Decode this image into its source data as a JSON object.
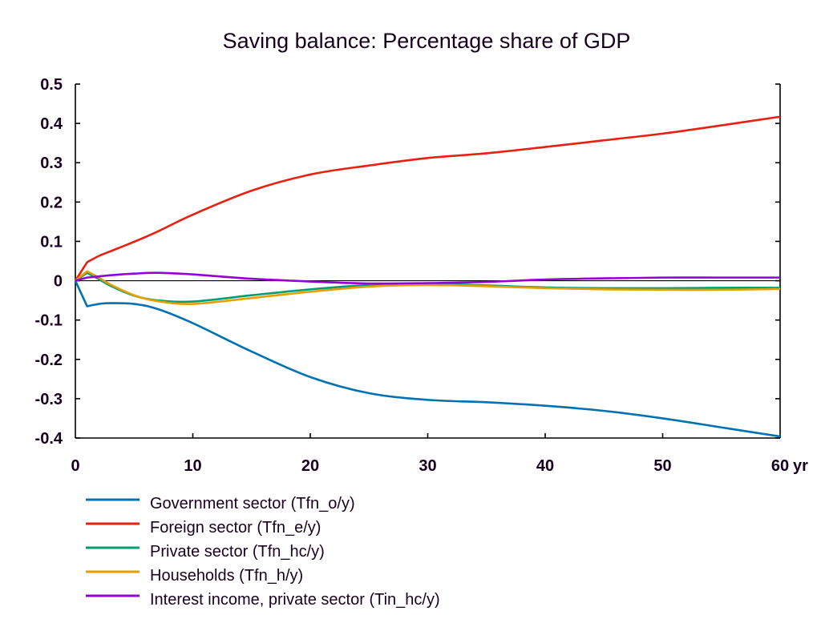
{
  "chart_data": {
    "type": "line",
    "title": "Saving balance: Percentage share of GDP",
    "xlabel": "",
    "x_unit_label": "yr",
    "ylabel": "",
    "xlim": [
      0,
      60
    ],
    "ylim": [
      -0.4,
      0.5
    ],
    "x_ticks": [
      0,
      10,
      20,
      30,
      40,
      50,
      60
    ],
    "x_tick_labels": [
      "0",
      "10",
      "20",
      "30",
      "40",
      "50",
      "60"
    ],
    "y_ticks": [
      0.5,
      0.4,
      0.3,
      0.2,
      0.1,
      0,
      -0.1,
      -0.2,
      -0.3,
      -0.4
    ],
    "y_tick_labels": [
      "0.5",
      "0.4",
      "0.3",
      "0.2",
      "0.1",
      "0",
      "-0.1",
      "-0.2",
      "-0.3",
      "-0.4"
    ],
    "grid": false,
    "zero_line": true,
    "legend_position": "bottom-left",
    "x": [
      0,
      1,
      2,
      3,
      5,
      7,
      10,
      15,
      20,
      25,
      30,
      35,
      40,
      45,
      50,
      55,
      60
    ],
    "series": [
      {
        "name": "Government sector (Tfn_o/y)",
        "color": "#0072B2",
        "values": [
          0,
          -0.065,
          -0.059,
          -0.057,
          -0.059,
          -0.072,
          -0.108,
          -0.18,
          -0.245,
          -0.286,
          -0.303,
          -0.309,
          -0.318,
          -0.331,
          -0.35,
          -0.373,
          -0.396
        ]
      },
      {
        "name": "Foreign sector (Tfn_e/y)",
        "color": "#E8200F",
        "values": [
          0,
          0.047,
          0.063,
          0.075,
          0.099,
          0.125,
          0.168,
          0.229,
          0.27,
          0.293,
          0.312,
          0.324,
          0.34,
          0.357,
          0.374,
          0.395,
          0.417
        ]
      },
      {
        "name": "Private sector (Tfn_hc/y)",
        "color": "#009E73",
        "values": [
          0,
          0.02,
          0.004,
          -0.013,
          -0.038,
          -0.05,
          -0.053,
          -0.037,
          -0.022,
          -0.011,
          -0.008,
          -0.012,
          -0.017,
          -0.019,
          -0.019,
          -0.018,
          -0.018
        ]
      },
      {
        "name": "Households (Tfn_h/y)",
        "color": "#E69F00",
        "values": [
          0,
          0.024,
          0.008,
          -0.01,
          -0.037,
          -0.052,
          -0.059,
          -0.044,
          -0.028,
          -0.015,
          -0.011,
          -0.014,
          -0.019,
          -0.022,
          -0.023,
          -0.023,
          -0.021
        ]
      },
      {
        "name": "Interest income, private sector (Tin_hc/y)",
        "color": "#9400D3",
        "values": [
          0,
          0.008,
          0.011,
          0.014,
          0.018,
          0.02,
          0.016,
          0.005,
          -0.002,
          -0.007,
          -0.006,
          -0.003,
          0.003,
          0.006,
          0.008,
          0.008,
          0.008
        ]
      }
    ]
  }
}
